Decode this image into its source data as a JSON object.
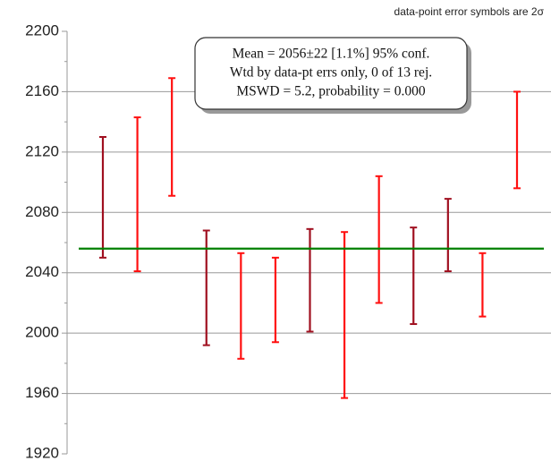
{
  "chart_data": {
    "type": "errorbar",
    "note": "data-point  error  symbols are 2σ",
    "annotations": [
      "Mean = 2056±22  [1.1%]  95% conf.",
      "Wtd by data-pt errs only, 0 of 13 rej.",
      "MSWD = 5.2, probability = 0.000"
    ],
    "values": [
      2090,
      2092,
      2130,
      2030,
      2018,
      2022,
      2035,
      2012,
      2062,
      2038,
      2065,
      2032,
      2128
    ],
    "errors": [
      40,
      51,
      39,
      38,
      35,
      28,
      34,
      55,
      42,
      32,
      24,
      21,
      32
    ],
    "colors": [
      "#a01020",
      "#ff1010",
      "#ff1010",
      "#a01020",
      "#ff1010",
      "#ff1010",
      "#a01020",
      "#ff1010",
      "#ff1010",
      "#a01020",
      "#a01020",
      "#ff1010",
      "#ff1010"
    ],
    "mean": 2056,
    "mean_color": "#008000",
    "ylim": [
      1920,
      2200
    ],
    "yticks": [
      1920,
      1960,
      2000,
      2040,
      2080,
      2120,
      2160,
      2200
    ],
    "grid": true
  }
}
